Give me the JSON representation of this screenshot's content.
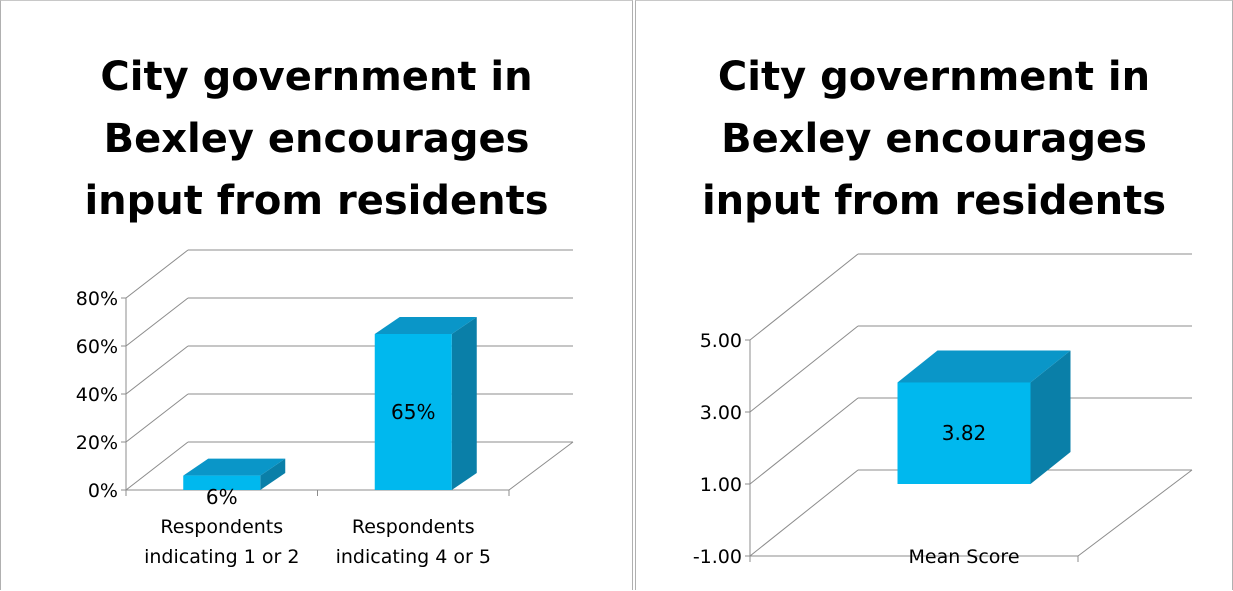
{
  "chart_data": [
    {
      "type": "bar",
      "title_lines": [
        "City government in",
        "Bexley encourages",
        "input from residents"
      ],
      "categories": [
        "Respondents indicating 1 or 2",
        "Respondents indicating 4 or 5"
      ],
      "category_lines": [
        [
          "Respondents",
          "indicating 1 or 2"
        ],
        [
          "Respondents",
          "indicating 4 or 5"
        ]
      ],
      "values": [
        6,
        65
      ],
      "data_labels": [
        "6%",
        "65%"
      ],
      "ylim": [
        0,
        80
      ],
      "yticks": [
        0,
        20,
        40,
        60,
        80
      ],
      "ytick_labels": [
        "0%",
        "20%",
        "40%",
        "60%",
        "80%"
      ],
      "grid": true,
      "style_3d": true
    },
    {
      "type": "bar",
      "title_lines": [
        "City government in",
        "Bexley encourages",
        "input from residents"
      ],
      "categories": [
        "Mean Score"
      ],
      "values": [
        3.82
      ],
      "data_labels": [
        "3.82"
      ],
      "ylim": [
        -1,
        5
      ],
      "yticks": [
        -1,
        1,
        3,
        5
      ],
      "ytick_labels": [
        "-1.00",
        "1.00",
        "3.00",
        "5.00"
      ],
      "grid": true,
      "style_3d": true
    }
  ],
  "colors": {
    "bar_front": "#00b8ee",
    "bar_top": "#0a96c8",
    "bar_side": "#0a7fa8",
    "grid": "#8c8c8c",
    "text": "#000000"
  }
}
